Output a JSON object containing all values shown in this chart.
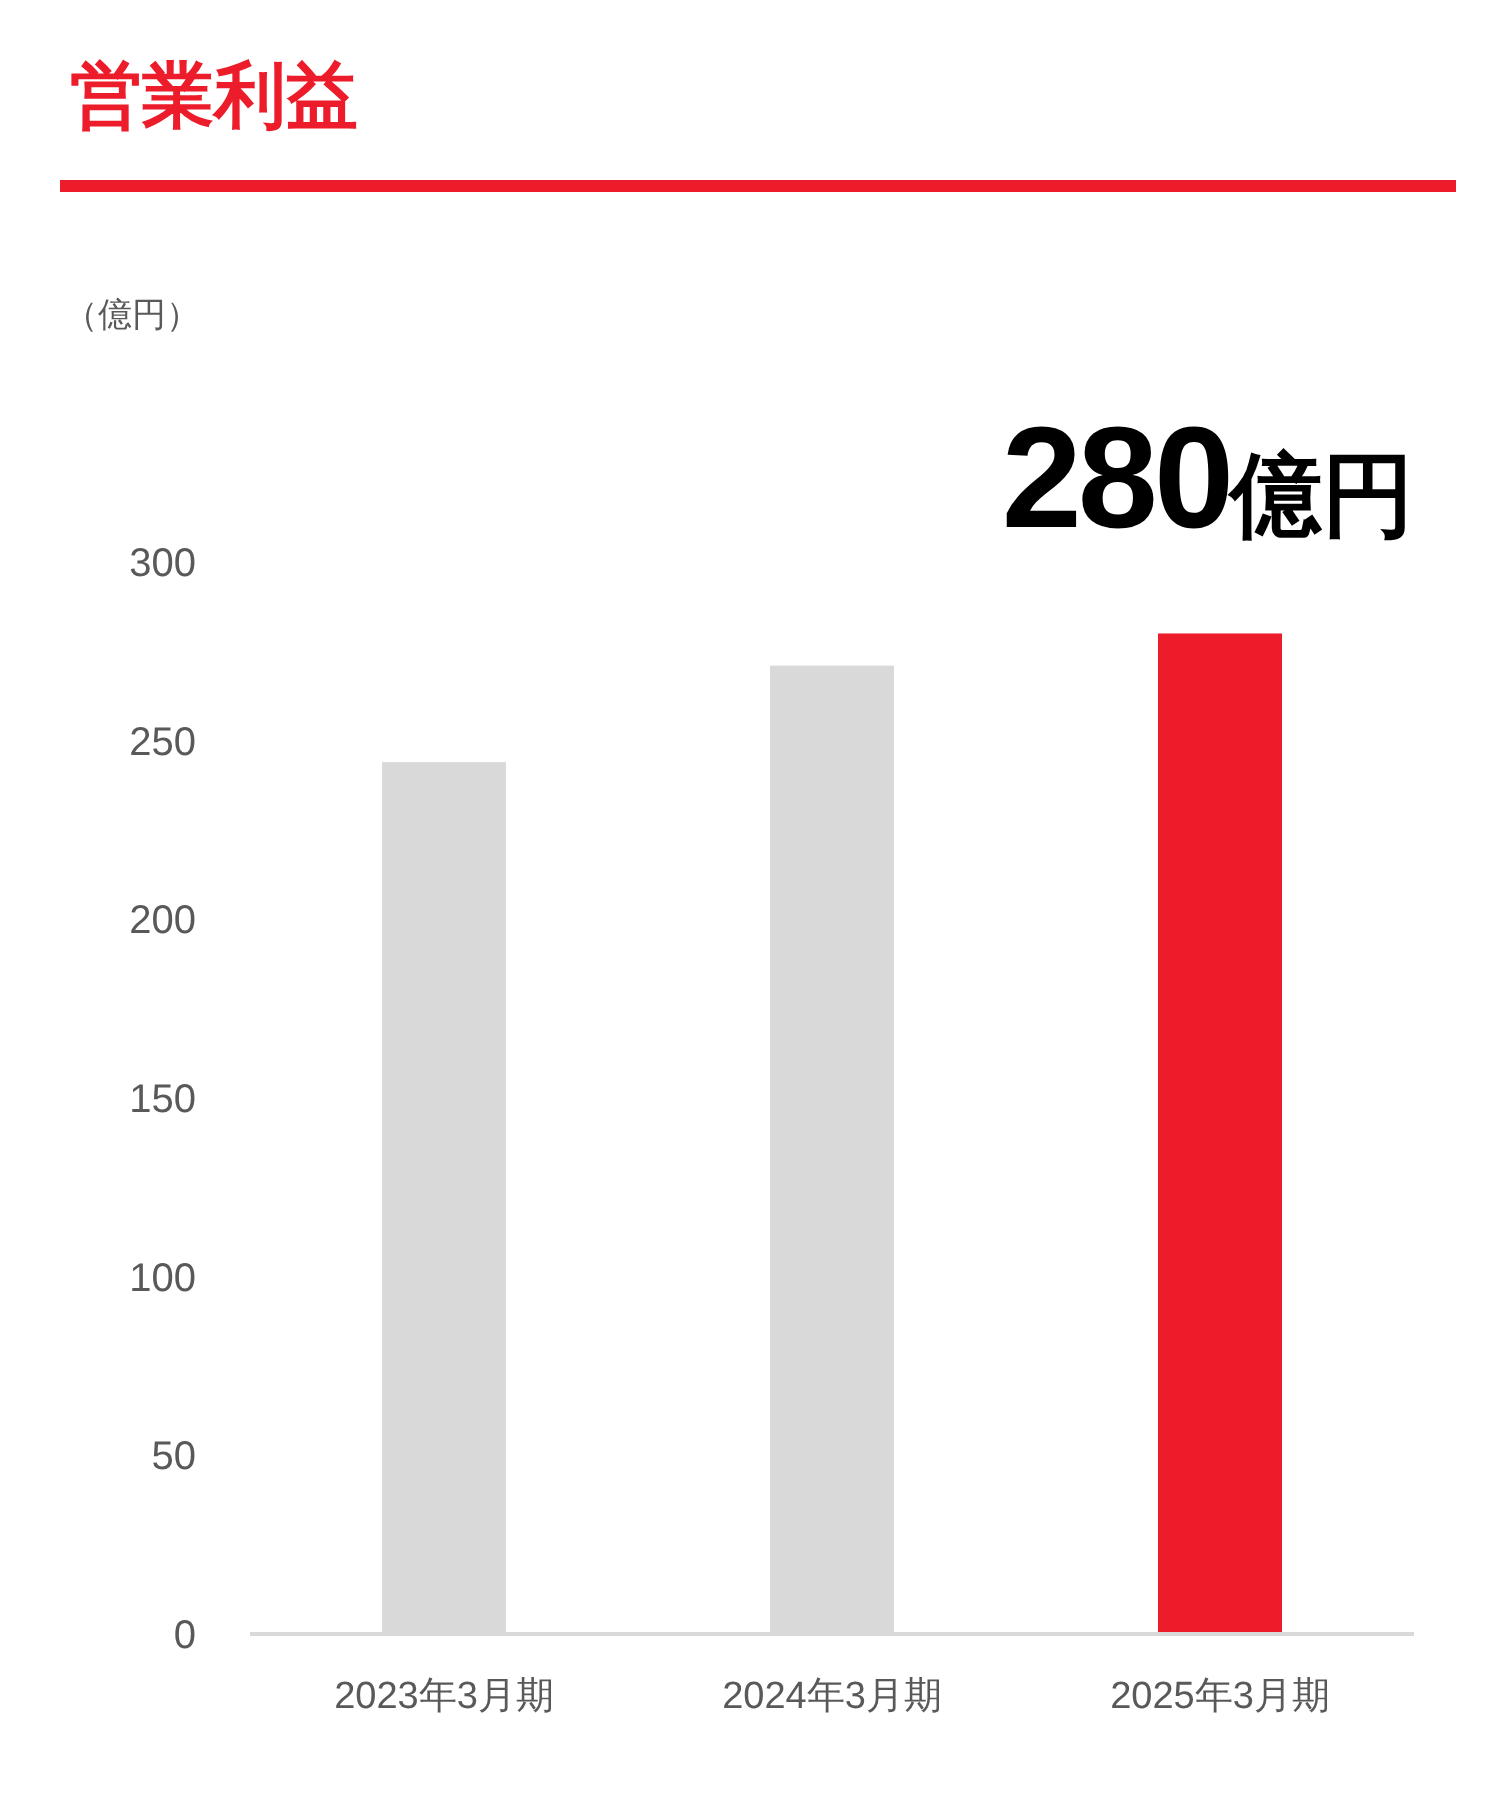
{
  "chart_data": {
    "type": "bar",
    "title": "営業利益",
    "annotations": [
      "（億円）"
    ],
    "categories": [
      "2023年3月期",
      "2024年3月期",
      "2025年3月期"
    ],
    "values": [
      244,
      271,
      280
    ],
    "colors": [
      "#d9d9d9",
      "#d9d9d9",
      "#ed1c2a"
    ],
    "value_labels": [
      null,
      null,
      "280億円"
    ],
    "ylim": [
      0,
      300
    ],
    "yticks": [
      0,
      50,
      100,
      150,
      200,
      250,
      300
    ],
    "grid": false
  }
}
